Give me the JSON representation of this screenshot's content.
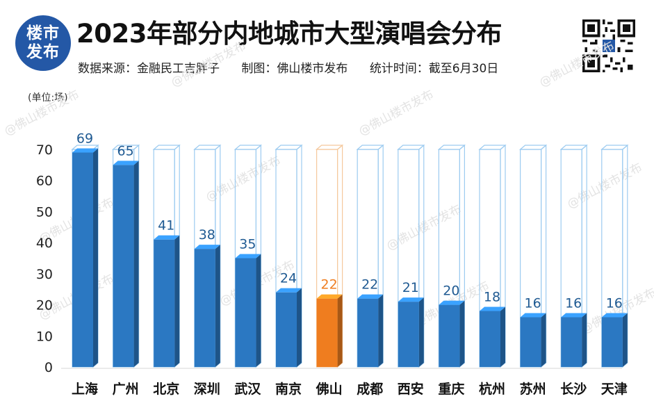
{
  "header": {
    "logo_line1": "楼市",
    "logo_line2": "发布",
    "title": "2023年部分内地城市大型演唱会分布",
    "source": "数据来源：金融民工吉胖子",
    "maker": "制图：佛山楼市发布",
    "period": "统计时间：截至6月30日"
  },
  "watermark_text": "@佛山楼市发布",
  "colors": {
    "bar_blue": "#2b78c2",
    "bar_blue_dark": "#1d5c9e",
    "bar_highlight": "#ef7d1f",
    "label_blue": "#1f5a92",
    "label_highlight": "#ef7d1f",
    "outline_blue": "#9ccbf0",
    "outline_highlight": "#f5c89c"
  },
  "chart_data": {
    "type": "bar",
    "unit_label": "(单位:场)",
    "categories": [
      "上海",
      "广州",
      "北京",
      "深圳",
      "武汉",
      "南京",
      "佛山",
      "成都",
      "西安",
      "重庆",
      "杭州",
      "苏州",
      "长沙",
      "天津"
    ],
    "values": [
      69,
      65,
      41,
      38,
      35,
      24,
      22,
      22,
      21,
      20,
      18,
      16,
      16,
      16
    ],
    "highlight": "佛山",
    "ylim": [
      0,
      70
    ],
    "yticks": [
      0,
      10,
      20,
      30,
      40,
      50,
      60,
      70
    ],
    "grid": false,
    "legend": "none"
  }
}
